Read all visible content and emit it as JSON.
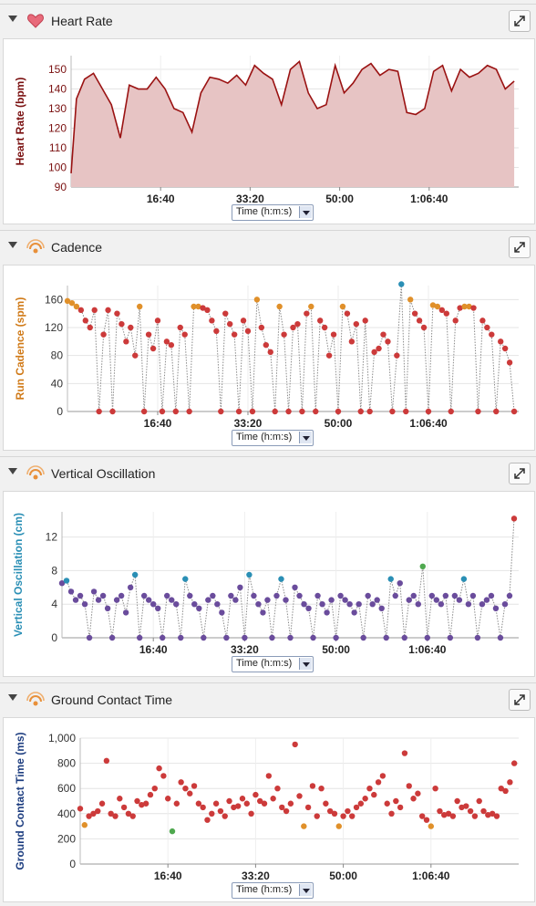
{
  "time_selector": {
    "label": "Time (h:m:s)"
  },
  "panels": [
    {
      "title": "Heart Rate",
      "icon": "heart-icon"
    },
    {
      "title": "Cadence",
      "icon": "running-sensor-icon"
    },
    {
      "title": "Vertical Oscillation",
      "icon": "running-sensor-icon"
    },
    {
      "title": "Ground Contact Time",
      "icon": "running-sensor-icon"
    }
  ],
  "colors": {
    "hr_line": "#9a1212",
    "hr_fill": "#e7c4c4",
    "red": "#cc3a3a",
    "orange": "#e0902a",
    "green": "#4fa84f",
    "blue": "#2a8fb5",
    "purple": "#6a4c9c"
  },
  "chart_data": [
    {
      "type": "area",
      "ylabel": "Heart Rate (bpm)",
      "xlabel": "Time (h:m:s)",
      "xticks": [
        "16:40",
        "33:20",
        "50:00",
        "1:06:40"
      ],
      "yticks": [
        90,
        100,
        110,
        120,
        130,
        140,
        150
      ],
      "ylim": [
        90,
        157
      ],
      "xlim": [
        0,
        5000
      ],
      "series": [
        {
          "x": [
            0,
            60,
            150,
            250,
            350,
            450,
            550,
            650,
            750,
            850,
            950,
            1050,
            1150,
            1250,
            1350,
            1450,
            1550,
            1650,
            1750,
            1850,
            1950,
            2050,
            2150,
            2250,
            2350,
            2450,
            2550,
            2650,
            2750,
            2850,
            2950,
            3050,
            3150,
            3250,
            3350,
            3450,
            3550,
            3650,
            3750,
            3850,
            3950,
            4050,
            4150,
            4250,
            4350,
            4450,
            4550,
            4650,
            4750,
            4850,
            4950
          ],
          "y": [
            97,
            135,
            145,
            148,
            140,
            132,
            115,
            142,
            140,
            140,
            146,
            140,
            130,
            128,
            118,
            138,
            146,
            145,
            143,
            147,
            142,
            152,
            148,
            145,
            132,
            150,
            154,
            138,
            130,
            132,
            152,
            138,
            143,
            150,
            153,
            147,
            150,
            149,
            128,
            127,
            130,
            149,
            152,
            139,
            150,
            146,
            148,
            152,
            150,
            140,
            144
          ]
        }
      ]
    },
    {
      "type": "scatter",
      "ylabel": "Run Cadence (spm)",
      "xlabel": "Time (h:m:s)",
      "xticks": [
        "16:40",
        "33:20",
        "50:00",
        "1:06:40"
      ],
      "yticks": [
        0,
        40,
        80,
        120,
        160
      ],
      "ylim": [
        0,
        180
      ],
      "xlim": [
        0,
        5000
      ],
      "series": [
        {
          "x": [
            0,
            50,
            100,
            150,
            200,
            250,
            300,
            350,
            400,
            450,
            500,
            550,
            600,
            650,
            700,
            750,
            800,
            850,
            900,
            950,
            1000,
            1050,
            1100,
            1150,
            1200,
            1250,
            1300,
            1350,
            1400,
            1450,
            1500,
            1550,
            1600,
            1650,
            1700,
            1750,
            1800,
            1850,
            1900,
            1950,
            2000,
            2050,
            2100,
            2150,
            2200,
            2250,
            2300,
            2350,
            2400,
            2450,
            2500,
            2550,
            2600,
            2650,
            2700,
            2750,
            2800,
            2850,
            2900,
            2950,
            3000,
            3050,
            3100,
            3150,
            3200,
            3250,
            3300,
            3350,
            3400,
            3450,
            3500,
            3550,
            3600,
            3650,
            3700,
            3750,
            3800,
            3850,
            3900,
            3950,
            4000,
            4050,
            4100,
            4150,
            4200,
            4250,
            4300,
            4350,
            4400,
            4450,
            4500,
            4550,
            4600,
            4650,
            4700,
            4750,
            4800,
            4850,
            4900,
            4950
          ],
          "y": [
            158,
            155,
            150,
            145,
            130,
            120,
            145,
            0,
            110,
            145,
            0,
            140,
            125,
            100,
            120,
            80,
            150,
            0,
            110,
            90,
            130,
            0,
            100,
            95,
            0,
            120,
            110,
            0,
            150,
            150,
            148,
            145,
            130,
            115,
            0,
            140,
            125,
            110,
            0,
            130,
            115,
            0,
            160,
            120,
            95,
            85,
            0,
            150,
            110,
            0,
            120,
            125,
            0,
            140,
            150,
            0,
            130,
            120,
            80,
            110,
            0,
            150,
            140,
            100,
            125,
            0,
            130,
            0,
            85,
            90,
            110,
            100,
            0,
            80,
            182,
            0,
            160,
            140,
            130,
            120,
            0,
            152,
            150,
            145,
            140,
            0,
            130,
            148,
            150,
            150,
            148,
            0,
            130,
            120,
            110,
            0,
            100,
            90,
            70,
            0
          ]
        }
      ]
    },
    {
      "type": "scatter",
      "ylabel": "Vertical Oscillation (cm)",
      "xlabel": "Time (h:m:s)",
      "xticks": [
        "16:40",
        "33:20",
        "50:00",
        "1:06:40"
      ],
      "yticks": [
        0,
        4,
        8,
        12
      ],
      "ylim": [
        0,
        15
      ],
      "xlim": [
        0,
        5000
      ],
      "series": [
        {
          "x": [
            0,
            50,
            100,
            150,
            200,
            250,
            300,
            350,
            400,
            450,
            500,
            550,
            600,
            650,
            700,
            750,
            800,
            850,
            900,
            950,
            1000,
            1050,
            1100,
            1150,
            1200,
            1250,
            1300,
            1350,
            1400,
            1450,
            1500,
            1550,
            1600,
            1650,
            1700,
            1750,
            1800,
            1850,
            1900,
            1950,
            2000,
            2050,
            2100,
            2150,
            2200,
            2250,
            2300,
            2350,
            2400,
            2450,
            2500,
            2550,
            2600,
            2650,
            2700,
            2750,
            2800,
            2850,
            2900,
            2950,
            3000,
            3050,
            3100,
            3150,
            3200,
            3250,
            3300,
            3350,
            3400,
            3450,
            3500,
            3550,
            3600,
            3650,
            3700,
            3750,
            3800,
            3850,
            3900,
            3950,
            4000,
            4050,
            4100,
            4150,
            4200,
            4250,
            4300,
            4350,
            4400,
            4450,
            4500,
            4550,
            4600,
            4650,
            4700,
            4750,
            4800,
            4850,
            4900,
            4950
          ],
          "y": [
            6.5,
            6.8,
            5.5,
            4.5,
            5,
            4,
            0,
            5.5,
            4.5,
            5,
            3.5,
            0,
            4.5,
            5,
            3,
            6,
            7.5,
            0,
            5,
            4.5,
            4,
            3.5,
            0,
            5,
            4.5,
            4,
            0,
            7,
            5,
            4,
            3.5,
            0,
            4.5,
            5,
            4,
            3,
            0,
            5,
            4.5,
            6,
            0,
            7.5,
            5,
            4,
            3,
            4.5,
            0,
            5,
            7,
            4.5,
            0,
            6,
            5,
            4,
            3.5,
            0,
            5,
            4,
            3,
            4.5,
            0,
            5,
            4.5,
            4,
            3,
            4,
            0,
            5,
            4,
            4.5,
            3.5,
            0,
            7,
            5,
            6.5,
            0,
            4.5,
            5,
            4,
            8.5,
            0,
            5,
            4.5,
            4,
            5,
            0,
            5,
            4.5,
            7,
            4,
            5,
            0,
            4,
            4.5,
            5,
            3.5,
            0,
            4,
            5,
            14.2
          ]
        }
      ]
    },
    {
      "type": "scatter",
      "ylabel": "Ground Contact Time (ms)",
      "xlabel": "Time (h:m:s)",
      "xticks": [
        "16:40",
        "33:20",
        "50:00",
        "1:06:40"
      ],
      "yticks": [
        "0",
        "200",
        "400",
        "600",
        "800",
        "1,000"
      ],
      "ylim": [
        0,
        1000
      ],
      "xlim": [
        0,
        5000
      ],
      "series": [
        {
          "x": [
            0,
            50,
            100,
            150,
            200,
            250,
            300,
            350,
            400,
            450,
            500,
            550,
            600,
            650,
            700,
            750,
            800,
            850,
            900,
            950,
            1000,
            1050,
            1100,
            1150,
            1200,
            1250,
            1300,
            1350,
            1400,
            1450,
            1500,
            1550,
            1600,
            1650,
            1700,
            1750,
            1800,
            1850,
            1900,
            1950,
            2000,
            2050,
            2100,
            2150,
            2200,
            2250,
            2300,
            2350,
            2400,
            2450,
            2500,
            2550,
            2600,
            2650,
            2700,
            2750,
            2800,
            2850,
            2900,
            2950,
            3000,
            3050,
            3100,
            3150,
            3200,
            3250,
            3300,
            3350,
            3400,
            3450,
            3500,
            3550,
            3600,
            3650,
            3700,
            3750,
            3800,
            3850,
            3900,
            3950,
            4000,
            4050,
            4100,
            4150,
            4200,
            4250,
            4300,
            4350,
            4400,
            4450,
            4500,
            4550,
            4600,
            4650,
            4700,
            4750,
            4800,
            4850,
            4900,
            4950
          ],
          "y": [
            440,
            310,
            380,
            400,
            420,
            480,
            820,
            400,
            380,
            520,
            450,
            400,
            380,
            500,
            470,
            480,
            550,
            600,
            760,
            700,
            520,
            260,
            480,
            650,
            600,
            560,
            620,
            480,
            450,
            350,
            400,
            480,
            420,
            380,
            500,
            450,
            460,
            520,
            480,
            400,
            550,
            500,
            480,
            700,
            520,
            600,
            450,
            420,
            480,
            950,
            540,
            300,
            450,
            620,
            380,
            600,
            480,
            420,
            400,
            300,
            380,
            420,
            380,
            450,
            480,
            520,
            600,
            550,
            650,
            700,
            480,
            400,
            500,
            450,
            880,
            620,
            520,
            560,
            380,
            350,
            300,
            600,
            420,
            390,
            400,
            380,
            500,
            450,
            460,
            420,
            380,
            500,
            420,
            390,
            400,
            380,
            600,
            580,
            650,
            800
          ]
        }
      ]
    }
  ]
}
